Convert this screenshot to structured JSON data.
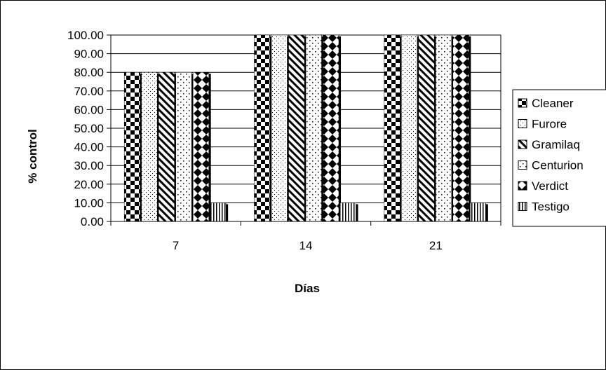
{
  "chart_data": {
    "type": "bar",
    "categories": [
      "7",
      "14",
      "21"
    ],
    "series": [
      {
        "name": "Cleaner",
        "values": [
          80,
          100,
          100
        ],
        "pattern": "checker"
      },
      {
        "name": "Furore",
        "values": [
          80,
          100,
          100
        ],
        "pattern": "dots"
      },
      {
        "name": "Gramilaq",
        "values": [
          80,
          100,
          100
        ],
        "pattern": "diag"
      },
      {
        "name": "Centurion",
        "values": [
          80,
          100,
          100
        ],
        "pattern": "sparse"
      },
      {
        "name": "Verdict",
        "values": [
          80,
          100,
          100
        ],
        "pattern": "diamond"
      },
      {
        "name": "Testigo",
        "values": [
          10,
          10,
          10
        ],
        "pattern": "vlines"
      }
    ],
    "xlabel": "Días",
    "ylabel": "% control",
    "ylim": [
      0,
      100
    ],
    "yticks": [
      "0.00",
      "10.00",
      "20.00",
      "30.00",
      "40.00",
      "50.00",
      "60.00",
      "70.00",
      "80.00",
      "90.00",
      "100.00"
    ],
    "grid": true,
    "legend_position": "right"
  }
}
